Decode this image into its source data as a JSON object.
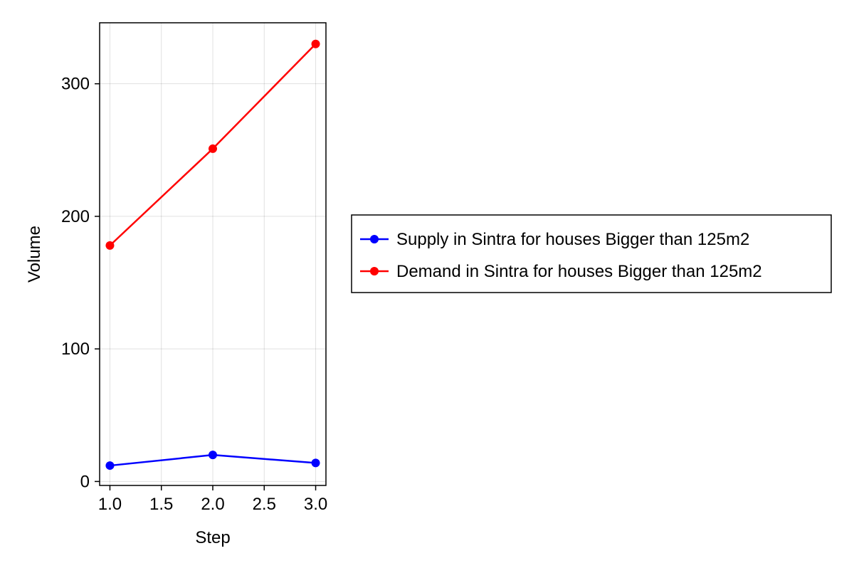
{
  "chart_data": {
    "type": "line",
    "title": "",
    "xlabel": "Step",
    "ylabel": "Volume",
    "x": [
      1.0,
      2.0,
      3.0
    ],
    "xlim": [
      0.9,
      3.1
    ],
    "ylim": [
      -3,
      346
    ],
    "xticks": [
      1.0,
      1.5,
      2.0,
      2.5,
      3.0
    ],
    "xtick_labels": [
      "1.0",
      "1.5",
      "2.0",
      "2.5",
      "3.0"
    ],
    "yticks": [
      0,
      100,
      200,
      300
    ],
    "ytick_labels": [
      "0",
      "100",
      "200",
      "300"
    ],
    "grid": true,
    "legend_position": "right",
    "series": [
      {
        "name": "Supply in Sintra for houses Bigger than 125m2",
        "color": "#0000ff",
        "marker": "circle",
        "values": [
          12,
          20,
          14
        ]
      },
      {
        "name": "Demand in Sintra for houses Bigger than 125m2",
        "color": "#ff0000",
        "marker": "circle",
        "values": [
          178,
          251,
          330
        ]
      }
    ]
  }
}
